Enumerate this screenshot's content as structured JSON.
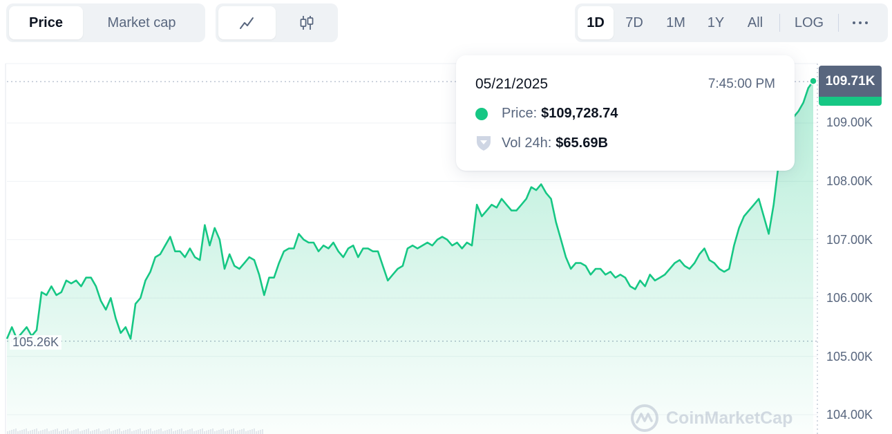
{
  "toolbar": {
    "metric_tabs": [
      {
        "label": "Price",
        "active": true
      },
      {
        "label": "Market cap",
        "active": false
      }
    ],
    "chart_type_buttons": [
      {
        "icon": "line-chart-icon",
        "active": true
      },
      {
        "icon": "candlestick-icon",
        "active": false
      }
    ],
    "range_buttons": [
      {
        "label": "1D",
        "active": true
      },
      {
        "label": "7D",
        "active": false
      },
      {
        "label": "1M",
        "active": false
      },
      {
        "label": "1Y",
        "active": false
      },
      {
        "label": "All",
        "active": false
      }
    ],
    "log_label": "LOG",
    "more_icon": "more-dots-icon"
  },
  "tooltip": {
    "date": "05/21/2025",
    "time": "7:45:00 PM",
    "price_label": "Price:",
    "price_value": "$109,728.74",
    "volume_label": "Vol 24h:",
    "volume_value": "$65.69B"
  },
  "current_price_tag": "109.71K",
  "open_price_label": "105.26K",
  "watermark": "CoinMarketCap",
  "colors": {
    "up": "#16c784",
    "tag_gray": "#58667e",
    "axis_text": "#58667e"
  },
  "chart_data": {
    "type": "area",
    "ylim": [
      103.7,
      110.3
    ],
    "y_ticks": [
      104,
      105,
      106,
      107,
      108,
      109
    ],
    "y_tick_labels": [
      "104.00K",
      "105.00K",
      "106.00K",
      "107.00K",
      "108.00K",
      "109.00K"
    ],
    "reference_lines": [
      109.71,
      105.26
    ],
    "grid": true,
    "series": [
      {
        "values": [
          105.3,
          105.5,
          105.3,
          105.4,
          105.5,
          105.35,
          105.45,
          106.1,
          106.05,
          106.2,
          106.05,
          106.1,
          106.3,
          106.25,
          106.3,
          106.2,
          106.35,
          106.35,
          106.2,
          105.95,
          105.8,
          106.0,
          105.65,
          105.4,
          105.5,
          105.3,
          105.9,
          106.0,
          106.3,
          106.45,
          106.7,
          106.75,
          106.9,
          107.05,
          106.8,
          106.8,
          106.7,
          106.85,
          106.7,
          106.65,
          107.25,
          106.9,
          107.2,
          107.0,
          106.5,
          106.75,
          106.55,
          106.5,
          106.6,
          106.7,
          106.65,
          106.4,
          106.05,
          106.35,
          106.35,
          106.6,
          106.8,
          106.85,
          106.85,
          107.1,
          107.0,
          106.95,
          106.95,
          106.8,
          106.9,
          106.85,
          106.95,
          106.8,
          106.7,
          106.85,
          106.9,
          106.7,
          106.85,
          106.85,
          106.8,
          106.8,
          106.55,
          106.3,
          106.4,
          106.5,
          106.55,
          106.85,
          106.9,
          106.85,
          106.9,
          106.95,
          106.9,
          107.0,
          107.05,
          107.0,
          106.9,
          106.95,
          106.85,
          106.95,
          106.9,
          107.6,
          107.4,
          107.5,
          107.6,
          107.55,
          107.7,
          107.6,
          107.5,
          107.5,
          107.6,
          107.7,
          107.9,
          107.85,
          107.95,
          107.8,
          107.7,
          107.3,
          107.0,
          106.7,
          106.5,
          106.6,
          106.6,
          106.55,
          106.4,
          106.5,
          106.5,
          106.4,
          106.45,
          106.35,
          106.4,
          106.35,
          106.2,
          106.15,
          106.3,
          106.2,
          106.4,
          106.3,
          106.35,
          106.4,
          106.5,
          106.6,
          106.65,
          106.55,
          106.5,
          106.6,
          106.75,
          106.85,
          106.65,
          106.6,
          106.5,
          106.45,
          106.5,
          106.9,
          107.2,
          107.4,
          107.5,
          107.6,
          107.7,
          107.4,
          107.1,
          107.6,
          108.3,
          108.8,
          109.0,
          109.1,
          109.2,
          109.35,
          109.6,
          109.72
        ]
      }
    ]
  }
}
